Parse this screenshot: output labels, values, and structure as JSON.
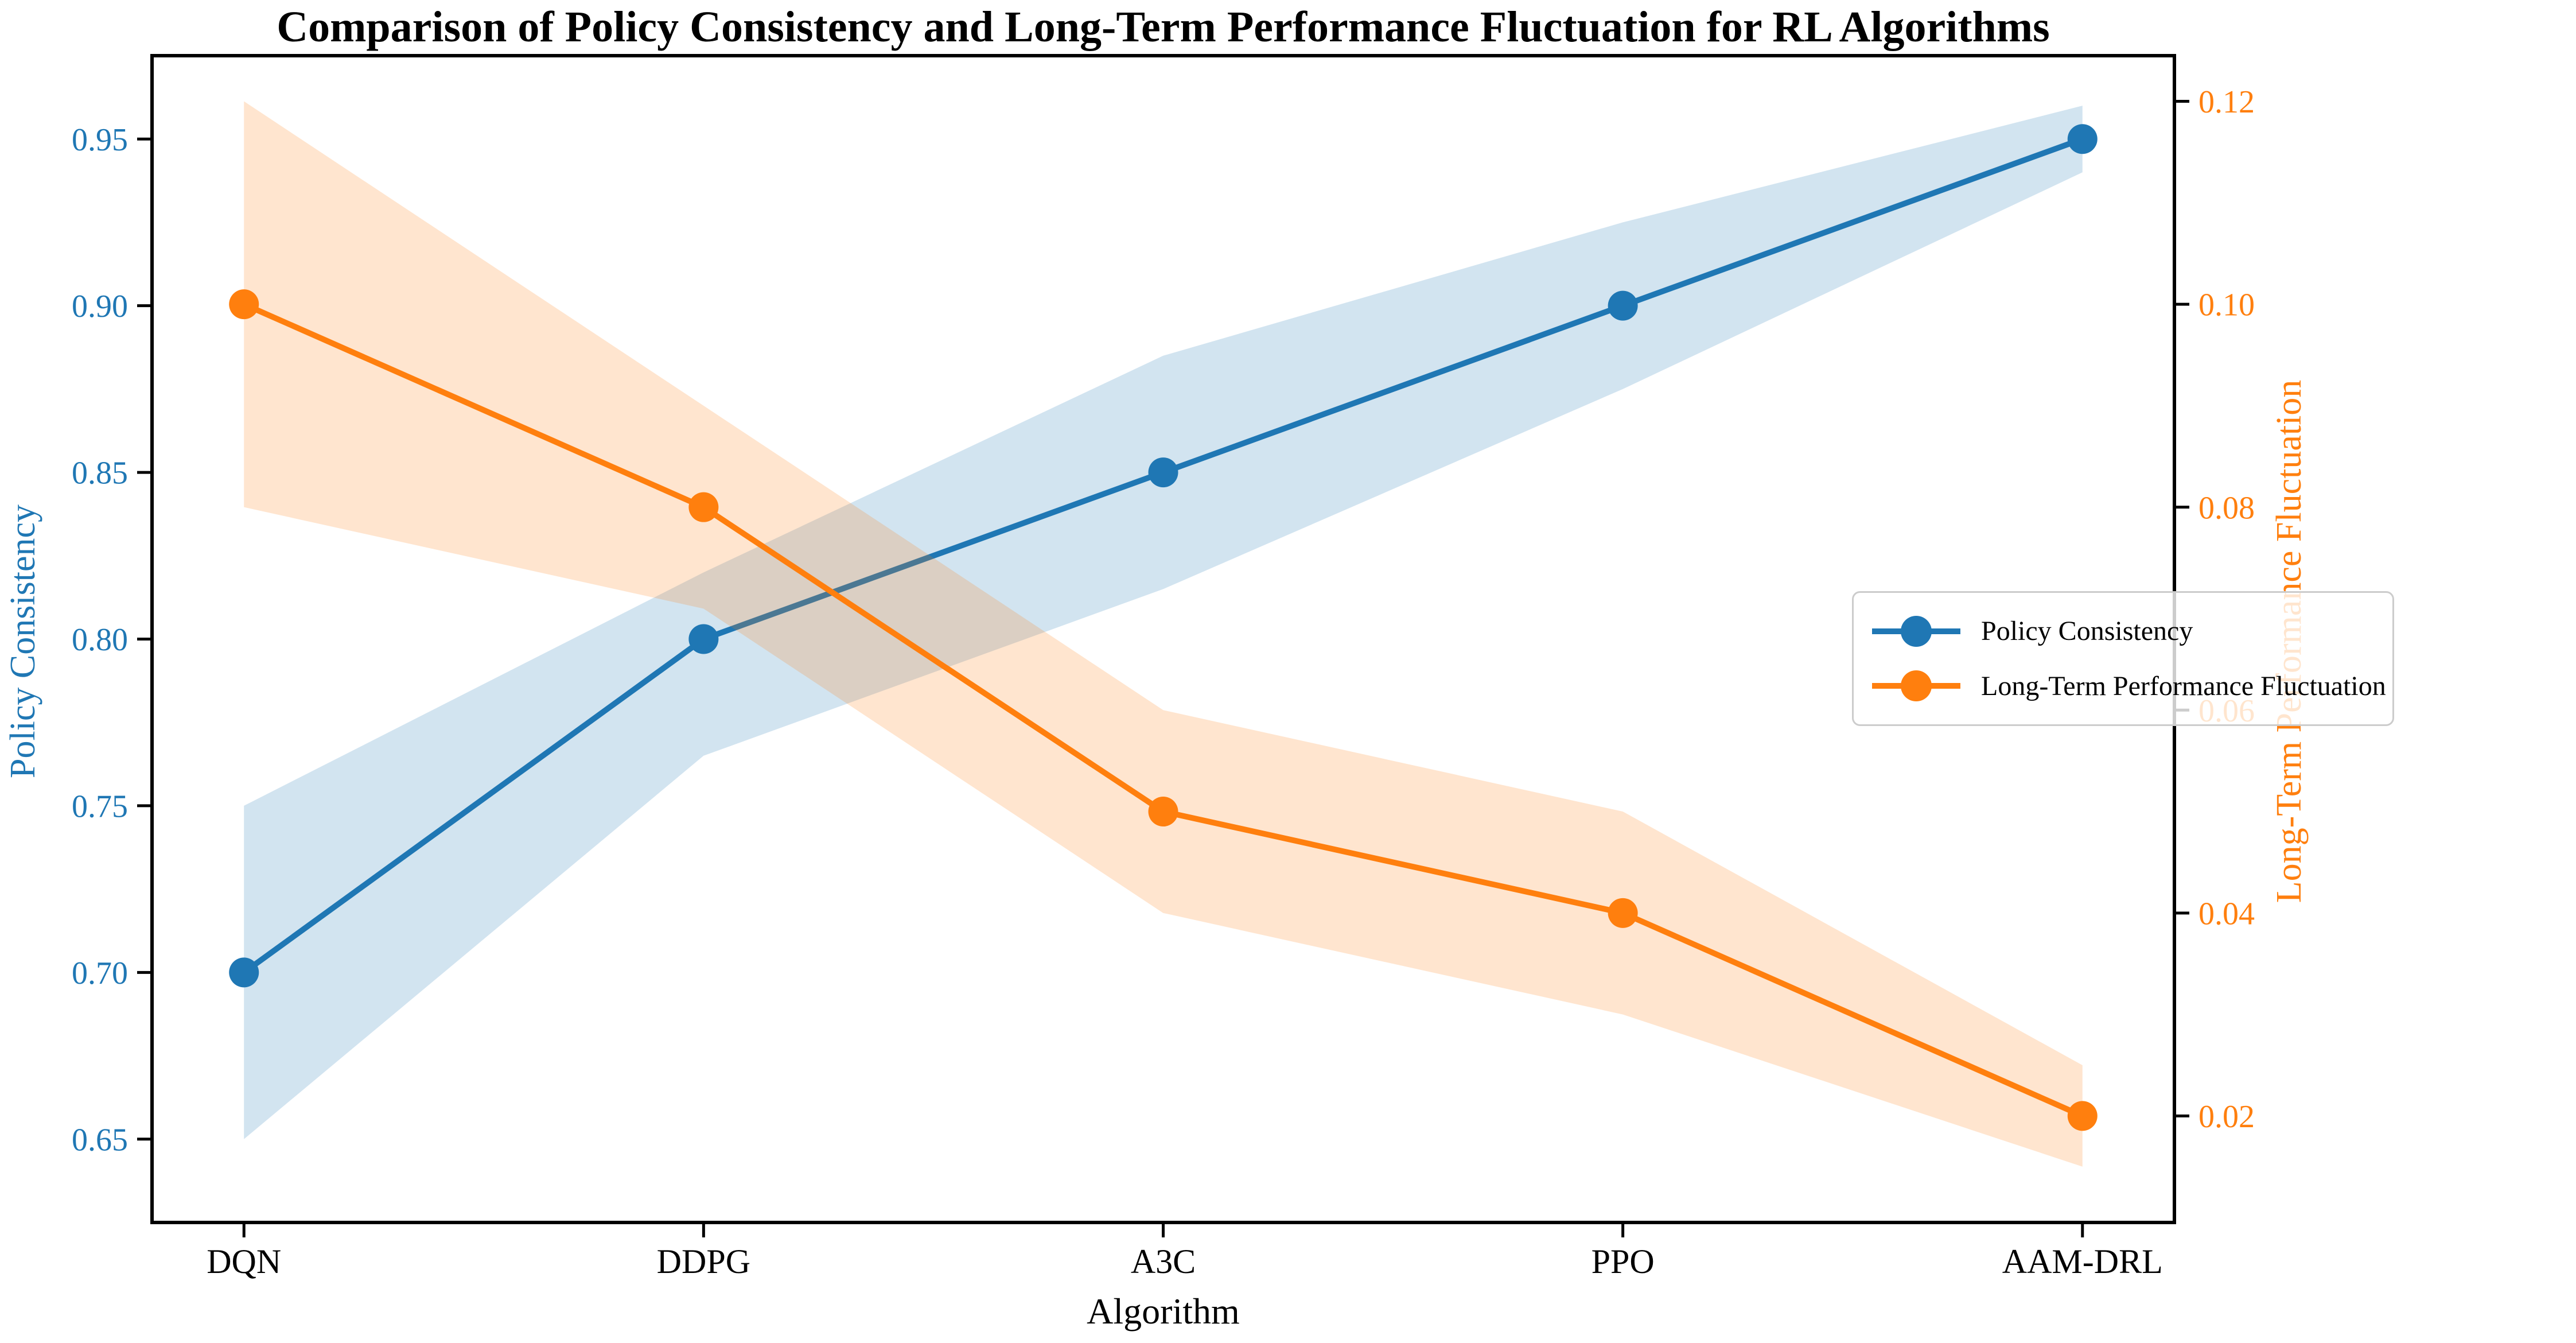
{
  "chart_data": {
    "type": "line",
    "title": "Comparison of Policy Consistency and Long-Term Performance Fluctuation for RL Algorithms",
    "xlabel": "Algorithm",
    "categories": [
      "DQN",
      "DDPG",
      "A3C",
      "PPO",
      "AAM-DRL"
    ],
    "grid": false,
    "legend": {
      "position": "center right",
      "entries": [
        "Policy Consistency",
        "Long-Term Performance Fluctuation"
      ]
    },
    "left_axis": {
      "label": "Policy Consistency",
      "color": "#1f77b4",
      "ticks": [
        0.65,
        0.7,
        0.75,
        0.8,
        0.85,
        0.9,
        0.95
      ],
      "tick_labels": [
        "0.65",
        "0.70",
        "0.75",
        "0.80",
        "0.85",
        "0.90",
        "0.95"
      ],
      "ylim": [
        0.625,
        0.975
      ]
    },
    "right_axis": {
      "label": "Long-Term Performance Fluctuation",
      "color": "#ff7f0e",
      "ticks": [
        0.02,
        0.04,
        0.06,
        0.08,
        0.1,
        0.12
      ],
      "tick_labels": [
        "0.02",
        "0.04",
        "0.06",
        "0.08",
        "0.10",
        "0.12"
      ],
      "ylim": [
        0.0095,
        0.1245
      ]
    },
    "series": [
      {
        "name": "Policy Consistency",
        "axis": "left",
        "color": "#1f77b4",
        "marker": "circle",
        "values": [
          0.7,
          0.8,
          0.85,
          0.9,
          0.95
        ],
        "band_lower": [
          0.65,
          0.765,
          0.815,
          0.875,
          0.94
        ],
        "band_upper": [
          0.75,
          0.82,
          0.885,
          0.925,
          0.96
        ],
        "band_alpha": 0.2
      },
      {
        "name": "Long-Term Performance Fluctuation",
        "axis": "right",
        "color": "#ff7f0e",
        "marker": "circle",
        "values": [
          0.1,
          0.08,
          0.05,
          0.04,
          0.02
        ],
        "band_lower": [
          0.08,
          0.07,
          0.04,
          0.03,
          0.015
        ],
        "band_upper": [
          0.12,
          0.09,
          0.06,
          0.05,
          0.025
        ],
        "band_alpha": 0.2
      }
    ]
  }
}
